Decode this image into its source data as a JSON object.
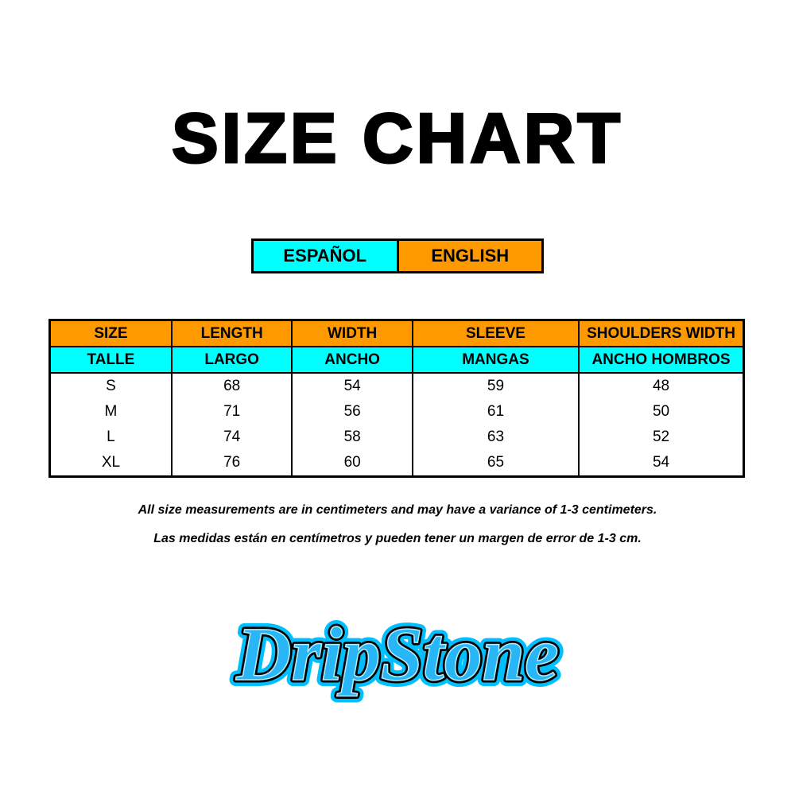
{
  "title": "SIZE CHART",
  "language_toggle": {
    "spanish": "ESPAÑOL",
    "english": "ENGLISH"
  },
  "colors": {
    "orange": "#ff9900",
    "cyan": "#00ffff",
    "logo_blue": "#29b6f6"
  },
  "table": {
    "headers_en": [
      "SIZE",
      "LENGTH",
      "WIDTH",
      "SLEEVE",
      "SHOULDERS WIDTH"
    ],
    "headers_es": [
      "TALLE",
      "LARGO",
      "ANCHO",
      "MANGAS",
      "ANCHO HOMBROS"
    ],
    "rows": [
      [
        "S",
        "68",
        "54",
        "59",
        "48"
      ],
      [
        "M",
        "71",
        "56",
        "61",
        "50"
      ],
      [
        "L",
        "74",
        "58",
        "63",
        "52"
      ],
      [
        "XL",
        "76",
        "60",
        "65",
        "54"
      ]
    ]
  },
  "notes": {
    "english": "All size measurements are in centimeters and may have a variance of 1-3 centimeters.",
    "spanish": "Las medidas están en centímetros y pueden tener un margen de error de 1-3 cm."
  },
  "logo": {
    "text": "DripStone"
  }
}
